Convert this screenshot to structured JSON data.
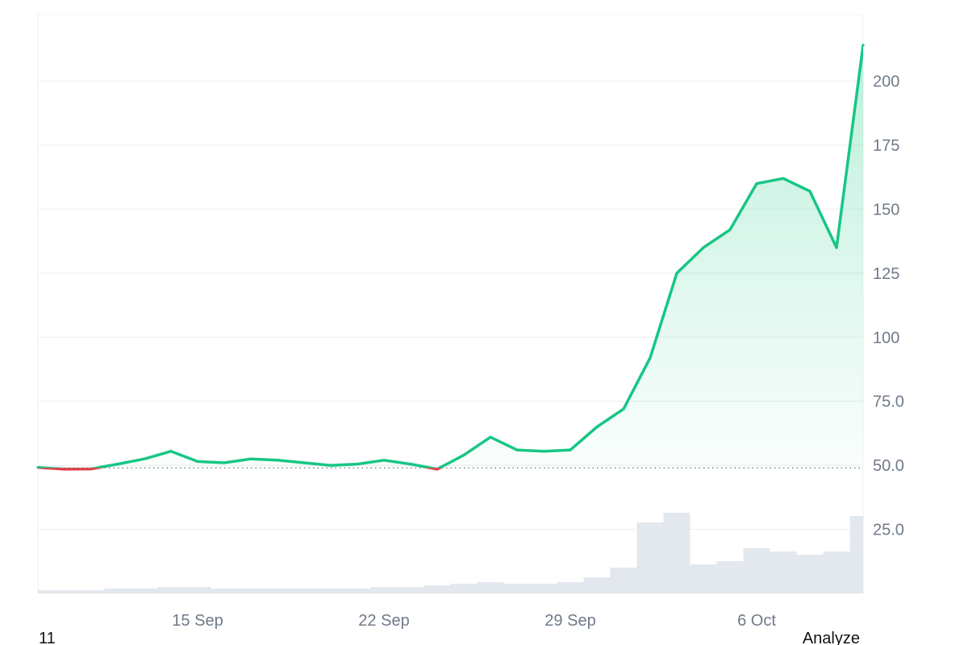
{
  "colors": {
    "up": "#16c784",
    "down": "#ea3943",
    "fill_top": "#16c784",
    "volume": "#e3e8ee",
    "grid": "#eef0f3",
    "baseline": "#5b6470"
  },
  "footer": {
    "left": "11",
    "right": "Analyze"
  },
  "chart_data": {
    "type": "line",
    "grid": true,
    "x_tick_labels": [
      "15 Sep",
      "22 Sep",
      "29 Sep",
      "6 Oct"
    ],
    "x_tick_dates": [
      "2024-09-15",
      "2024-09-22",
      "2024-09-29",
      "2024-10-06"
    ],
    "x_range": [
      "2024-09-09",
      "2024-10-10"
    ],
    "y_tick_labels": [
      "25.0",
      "50.0",
      "75.0",
      "100",
      "125",
      "150",
      "175",
      "200"
    ],
    "y_ticks": [
      25,
      50,
      75,
      100,
      125,
      150,
      175,
      200
    ],
    "ylim": [
      0,
      226
    ],
    "baseline_value": 49,
    "series": [
      {
        "x": [
          "2024-09-09",
          "2024-09-10",
          "2024-09-11",
          "2024-09-12",
          "2024-09-13",
          "2024-09-14",
          "2024-09-15",
          "2024-09-16",
          "2024-09-17",
          "2024-09-18",
          "2024-09-19",
          "2024-09-20",
          "2024-09-21",
          "2024-09-22",
          "2024-09-23",
          "2024-09-24",
          "2024-09-25",
          "2024-09-26",
          "2024-09-27",
          "2024-09-28",
          "2024-09-29",
          "2024-09-30",
          "2024-10-01",
          "2024-10-02",
          "2024-10-03",
          "2024-10-04",
          "2024-10-05",
          "2024-10-06",
          "2024-10-07",
          "2024-10-08",
          "2024-10-09",
          "2024-10-10"
        ],
        "values": [
          49.2,
          48.5,
          48.6,
          50.5,
          52.5,
          55.5,
          51.5,
          51,
          52.5,
          52,
          51,
          50,
          50.5,
          52,
          50.5,
          48.5,
          54,
          61,
          56,
          55.5,
          56,
          65,
          72,
          92,
          125,
          135,
          142,
          160,
          162,
          157,
          135,
          214
        ]
      }
    ],
    "volume": [
      1,
      1,
      1,
      1.5,
      1.5,
      2,
      2,
      1.5,
      1.5,
      1.5,
      1.5,
      1.5,
      1.5,
      2,
      2,
      2.5,
      3,
      3.5,
      3,
      3,
      3.5,
      5,
      8,
      22,
      25,
      9,
      10,
      14,
      13,
      12,
      13,
      24
    ]
  }
}
